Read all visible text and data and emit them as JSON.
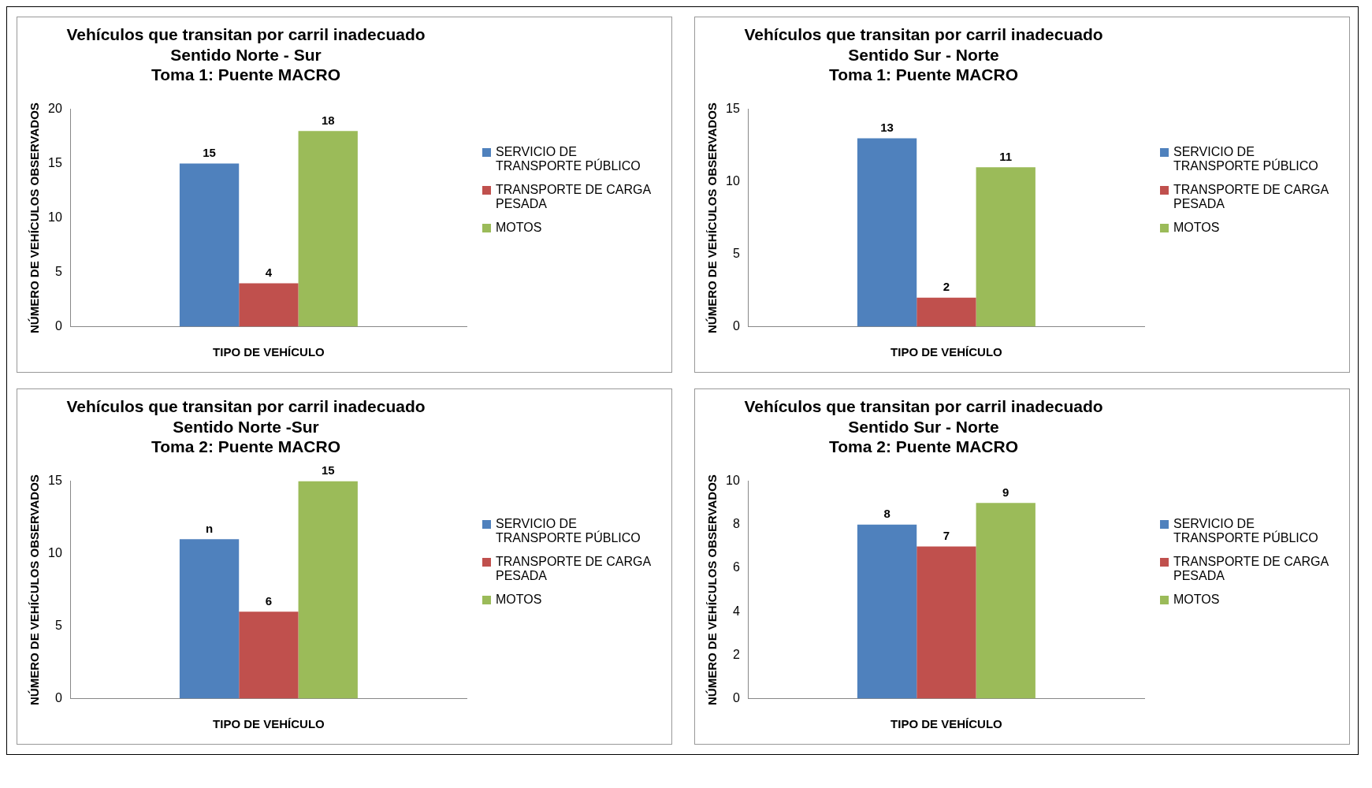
{
  "chart_data": [
    {
      "type": "bar",
      "title": "Vehículos que transitan por carril inadecuado\nSentido Norte - Sur\nToma 1: Puente MACRO",
      "xlabel": "TIPO DE VEHÍCULO",
      "ylabel": "NÚMERO DE VEHÍCULOS OBSERVADOS",
      "categories": [
        null
      ],
      "ylim": [
        0,
        20
      ],
      "yticks": [
        0,
        5,
        10,
        15,
        20
      ],
      "legend": "right",
      "data_labels": true,
      "series": [
        {
          "name": "SERVICIO DE TRANSPORTE PÚBLICO",
          "color": "#4f81bd",
          "values": [
            15
          ]
        },
        {
          "name": "TRANSPORTE DE CARGA PESADA",
          "color": "#c0504d",
          "values": [
            4
          ]
        },
        {
          "name": "MOTOS",
          "color": "#9bbb59",
          "values": [
            18
          ]
        }
      ]
    },
    {
      "type": "bar",
      "title": "Vehículos que transitan por carril inadecuado\nSentido Sur - Norte\nToma 1: Puente MACRO",
      "xlabel": "TIPO DE VEHÍCULO",
      "ylabel": "NÚMERO DE VEHÍCULOS OBSERVADOS",
      "categories": [
        null
      ],
      "ylim": [
        0,
        15
      ],
      "yticks": [
        0,
        5,
        10,
        15
      ],
      "legend": "right",
      "data_labels": true,
      "series": [
        {
          "name": "SERVICIO DE TRANSPORTE PÚBLICO",
          "color": "#4f81bd",
          "values": [
            13
          ]
        },
        {
          "name": "TRANSPORTE DE CARGA PESADA",
          "color": "#c0504d",
          "values": [
            2
          ]
        },
        {
          "name": "MOTOS",
          "color": "#9bbb59",
          "values": [
            11
          ]
        }
      ]
    },
    {
      "type": "bar",
      "title": "Vehículos que transitan por carril inadecuado\nSentido Norte -Sur\nToma 2: Puente MACRO",
      "xlabel": "TIPO DE VEHÍCULO",
      "ylabel": "NÚMERO DE VEHÍCULOS OBSERVADOS",
      "categories": [
        null
      ],
      "ylim": [
        0,
        15
      ],
      "yticks": [
        0,
        5,
        10,
        15
      ],
      "legend": "right",
      "series": [
        {
          "name": "SERVICIO DE TRANSPORTE PÚBLICO",
          "color": "#4f81bd",
          "values": [
            11
          ],
          "value_labels": [
            "n"
          ]
        },
        {
          "name": "TRANSPORTE DE CARGA PESADA",
          "color": "#c0504d",
          "values": [
            6
          ],
          "value_labels": [
            "6"
          ]
        },
        {
          "name": "MOTOS",
          "color": "#9bbb59",
          "values": [
            15
          ],
          "value_labels": [
            "15"
          ]
        }
      ]
    },
    {
      "type": "bar",
      "title": "Vehículos que transitan por carril inadecuado\nSentido Sur - Norte\nToma 2: Puente MACRO",
      "xlabel": "TIPO DE VEHÍCULO",
      "ylabel": "NÚMERO DE VEHÍCULOS OBSERVADOS",
      "categories": [
        null
      ],
      "ylim": [
        0,
        10
      ],
      "yticks": [
        0,
        2,
        4,
        6,
        8,
        10
      ],
      "legend": "right",
      "data_labels": true,
      "series": [
        {
          "name": "SERVICIO DE TRANSPORTE PÚBLICO",
          "color": "#4f81bd",
          "values": [
            8
          ]
        },
        {
          "name": "TRANSPORTE DE CARGA PESADA",
          "color": "#c0504d",
          "values": [
            7
          ]
        },
        {
          "name": "MOTOS",
          "color": "#9bbb59",
          "values": [
            9
          ]
        }
      ]
    }
  ]
}
